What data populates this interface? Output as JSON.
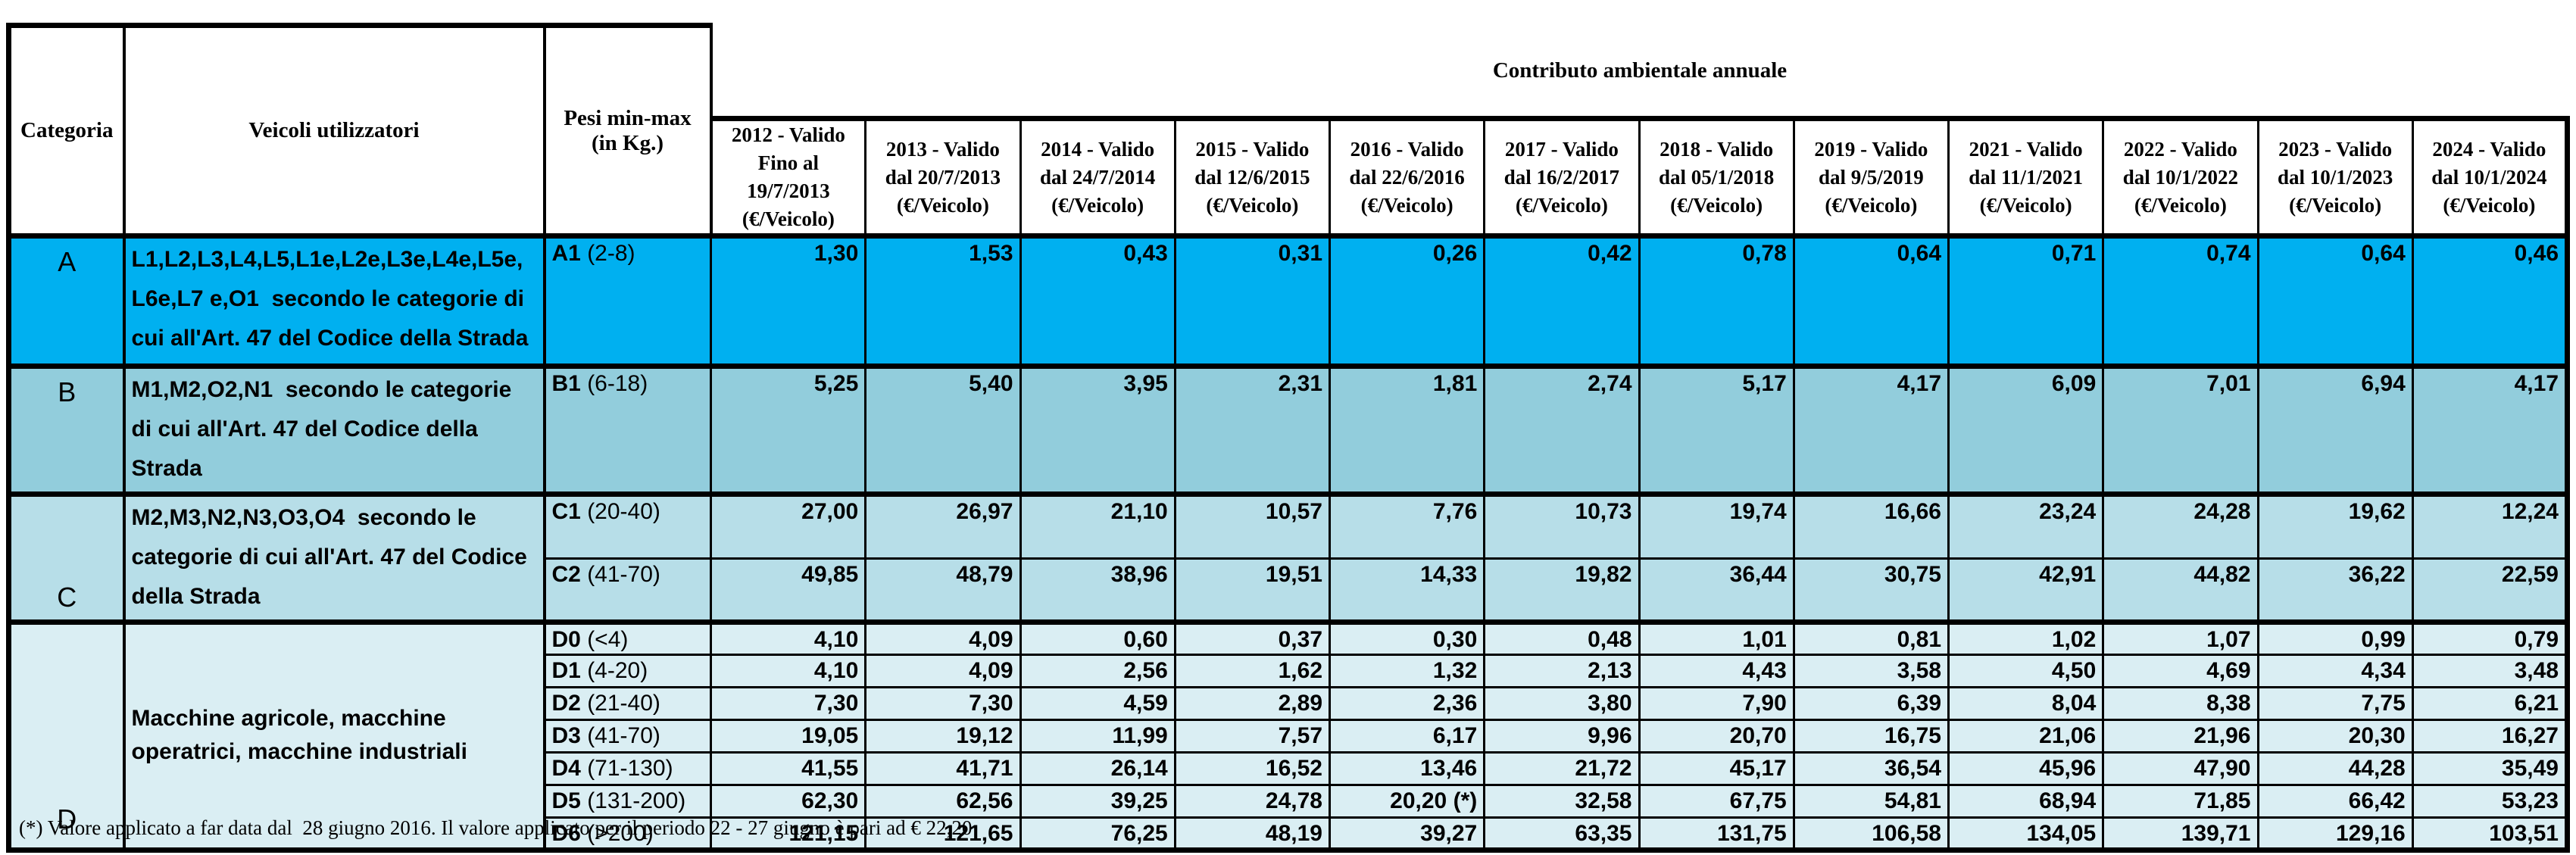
{
  "headers": {
    "categoria": "Categoria",
    "veicoli": "Veicoli utilizzatori",
    "pesi": "Pesi min-max\n(in Kg.)",
    "band_title": "Contributo ambientale annuale"
  },
  "year_headers": [
    "2012 - Valido\nFino al\n19/7/2013\n(€/Veicolo)",
    "2013 - Valido\ndal 20/7/2013\n(€/Veicolo)",
    "2014 - Valido\ndal 24/7/2014\n(€/Veicolo)",
    "2015 - Valido\ndal 12/6/2015\n(€/Veicolo)",
    "2016 - Valido\ndal 22/6/2016\n(€/Veicolo)",
    "2017 - Valido\ndal 16/2/2017\n(€/Veicolo)",
    "2018 - Valido\ndal 05/1/2018\n(€/Veicolo)",
    "2019 - Valido\ndal 9/5/2019\n(€/Veicolo)",
    "2021 - Valido\ndal 11/1/2021\n(€/Veicolo)",
    "2022 - Valido\ndal 10/1/2022\n(€/Veicolo)",
    "2023 - Valido\ndal 10/1/2023\n(€/Veicolo)",
    "2024 - Valido\ndal 10/1/2024\n(€/Veicolo)"
  ],
  "colors": {
    "group_a": "#00B0F0",
    "group_b": "#92CDDC",
    "group_c": "#B7DEE8",
    "group_d": "#DAEEF3",
    "border": "#000000"
  },
  "rows": [
    {
      "group": "A",
      "category": "A",
      "span": 1,
      "vehicles": "L1,L2,L3,L4,L5,L1e,L2e,L3e,L4e,L5e,L6e,L7 e,O1  secondo le categorie di cui all'Art. 47 del Codice della Strada",
      "weight_code": "A1",
      "weight_range": "(2-8)",
      "values": [
        "1,30",
        "1,53",
        "0,43",
        "0,31",
        "0,26",
        "0,42",
        "0,78",
        "0,64",
        "0,71",
        "0,74",
        "0,64",
        "0,46"
      ]
    },
    {
      "group": "B",
      "category": "B",
      "span": 1,
      "vehicles": "M1,M2,O2,N1  secondo le categorie di cui all'Art. 47 del Codice della Strada",
      "weight_code": "B1",
      "weight_range": "(6-18)",
      "values": [
        "5,25",
        "5,40",
        "3,95",
        "2,31",
        "1,81",
        "2,74",
        "5,17",
        "4,17",
        "6,09",
        "7,01",
        "6,94",
        "4,17"
      ]
    },
    {
      "group": "C",
      "category": "C",
      "span": 2,
      "vehicles": "M2,M3,N2,N3,O3,O4  secondo le categorie di cui all'Art. 47 del Codice della Strada",
      "weight_code": "C1",
      "weight_range": "(20-40)",
      "values": [
        "27,00",
        "26,97",
        "21,10",
        "10,57",
        "7,76",
        "10,73",
        "19,74",
        "16,66",
        "23,24",
        "24,28",
        "19,62",
        "12,24"
      ]
    },
    {
      "group": "C",
      "weight_code": "C2",
      "weight_range": "(41-70)",
      "values": [
        "49,85",
        "48,79",
        "38,96",
        "19,51",
        "14,33",
        "19,82",
        "36,44",
        "30,75",
        "42,91",
        "44,82",
        "36,22",
        "22,59"
      ]
    },
    {
      "group": "D",
      "category": "D",
      "span": 7,
      "vehicles": "Macchine agricole, macchine operatrici, macchine industriali",
      "weight_code": "D0",
      "weight_range": "(<4)",
      "values": [
        "4,10",
        "4,09",
        "0,60",
        "0,37",
        "0,30",
        "0,48",
        "1,01",
        "0,81",
        "1,02",
        "1,07",
        "0,99",
        "0,79"
      ]
    },
    {
      "group": "D",
      "weight_code": "D1",
      "weight_range": "(4-20)",
      "values": [
        "4,10",
        "4,09",
        "2,56",
        "1,62",
        "1,32",
        "2,13",
        "4,43",
        "3,58",
        "4,50",
        "4,69",
        "4,34",
        "3,48"
      ]
    },
    {
      "group": "D",
      "weight_code": "D2",
      "weight_range": "(21-40)",
      "values": [
        "7,30",
        "7,30",
        "4,59",
        "2,89",
        "2,36",
        "3,80",
        "7,90",
        "6,39",
        "8,04",
        "8,38",
        "7,75",
        "6,21"
      ]
    },
    {
      "group": "D",
      "weight_code": "D3",
      "weight_range": "(41-70)",
      "values": [
        "19,05",
        "19,12",
        "11,99",
        "7,57",
        "6,17",
        "9,96",
        "20,70",
        "16,75",
        "21,06",
        "21,96",
        "20,30",
        "16,27"
      ]
    },
    {
      "group": "D",
      "weight_code": "D4",
      "weight_range": "(71-130)",
      "values": [
        "41,55",
        "41,71",
        "26,14",
        "16,52",
        "13,46",
        "21,72",
        "45,17",
        "36,54",
        "45,96",
        "47,90",
        "44,28",
        "35,49"
      ]
    },
    {
      "group": "D",
      "weight_code": "D5",
      "weight_range": "(131-200)",
      "values": [
        "62,30",
        "62,56",
        "39,25",
        "24,78",
        "20,20 (*)",
        "32,58",
        "67,75",
        "54,81",
        "68,94",
        "71,85",
        "66,42",
        "53,23"
      ]
    },
    {
      "group": "D",
      "weight_code": "D6",
      "weight_range": "(>200)",
      "values": [
        "121,15",
        "121,65",
        "76,25",
        "48,19",
        "39,27",
        "63,35",
        "131,75",
        "106,58",
        "134,05",
        "139,71",
        "129,16",
        "103,51"
      ]
    }
  ],
  "footnote": "(*) Valore applicato a far data dal  28 giugno 2016. Il valore applicato per il periodo 22 - 27 giugno è pari ad € 22,20"
}
